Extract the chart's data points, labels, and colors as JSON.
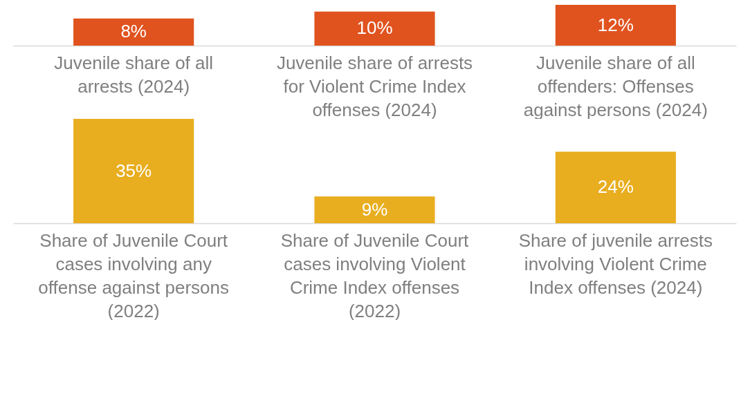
{
  "chart_data": [
    {
      "type": "bar",
      "categories": [
        "Juvenile share of all arrests (2024)",
        "Juvenile share of arrests for Violent Crime Index offenses (2024)",
        "Juvenile share of all offenders: Offenses against persons (2024)"
      ],
      "values": [
        8,
        10,
        12
      ],
      "value_labels": [
        "8%",
        "10%",
        "12%"
      ],
      "color": "#e0531f"
    },
    {
      "type": "bar",
      "categories": [
        "Share of Juvenile Court cases involving any offense against persons (2022)",
        "Share of Juvenile Court cases involving Violent Crime Index offenses (2022)",
        "Share of juvenile arrests involving Violent Crime Index offenses (2024)"
      ],
      "values": [
        35,
        9,
        24
      ],
      "value_labels": [
        "35%",
        "9%",
        "24%"
      ],
      "color": "#e8ae1f"
    }
  ]
}
